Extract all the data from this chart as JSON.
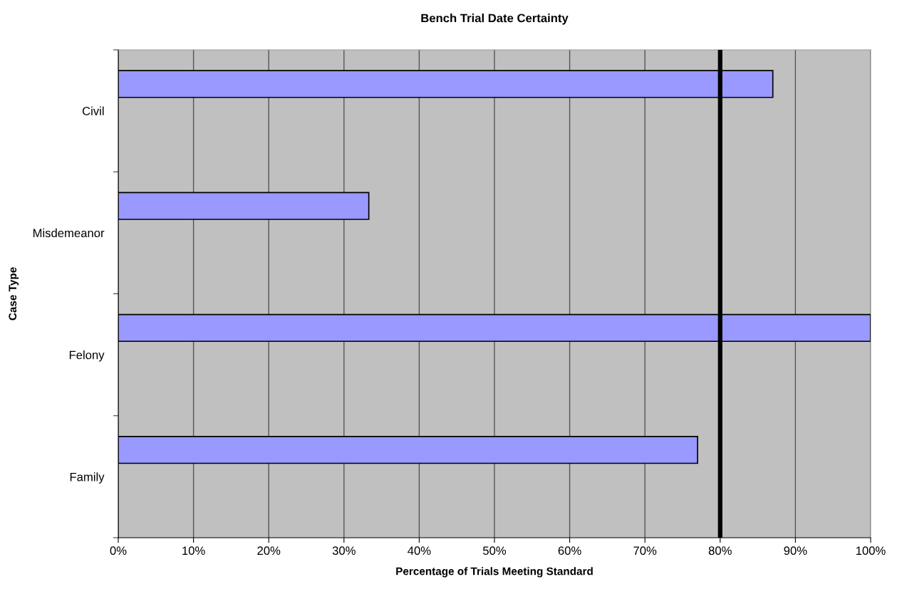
{
  "chart_data": {
    "type": "bar",
    "orientation": "horizontal",
    "title": "Bench Trial Date Certainty",
    "xlabel": "Percentage of Trials Meeting Standard",
    "ylabel": "Case Type",
    "categories": [
      "Civil",
      "Misdemeanor",
      "Felony",
      "Family"
    ],
    "values": [
      87.0,
      33.3,
      100,
      77.0
    ],
    "color": "#9999ff",
    "xlim": [
      0,
      100
    ],
    "xticks": [
      {
        "value": 0,
        "label": "0%"
      },
      {
        "value": 10,
        "label": "10%"
      },
      {
        "value": 20,
        "label": "20%"
      },
      {
        "value": 30,
        "label": "30%"
      },
      {
        "value": 40,
        "label": "40%"
      },
      {
        "value": 50,
        "label": "50%"
      },
      {
        "value": 60,
        "label": "60%"
      },
      {
        "value": 70,
        "label": "70%"
      },
      {
        "value": 80,
        "label": "80%"
      },
      {
        "value": 90,
        "label": "90%"
      },
      {
        "value": 100,
        "label": "100%"
      }
    ],
    "grid": "x",
    "ref_lines": [
      {
        "axis": "x",
        "value": 80,
        "color": "#000000"
      }
    ]
  }
}
